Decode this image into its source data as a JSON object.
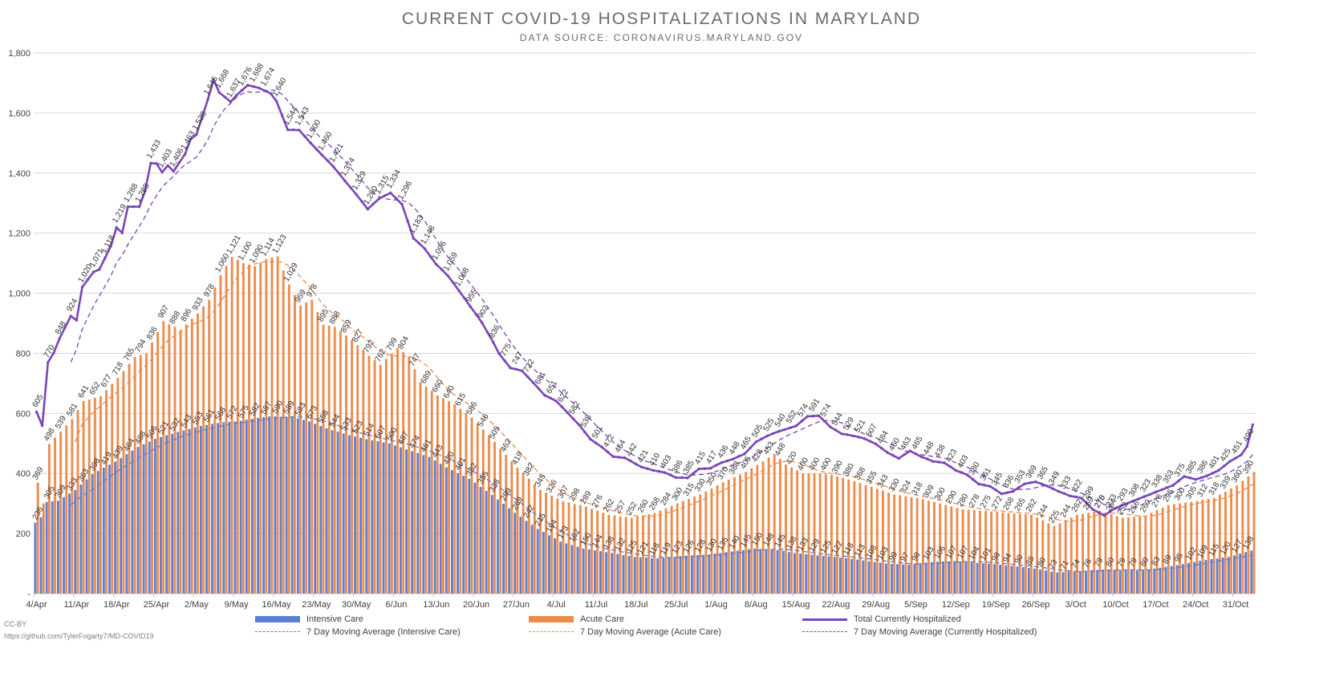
{
  "title": "CURRENT COVID-19 HOSPITALIZATIONS IN MARYLAND",
  "subtitle": "DATA SOURCE: CORONAVIRUS.MARYLAND.GOV",
  "footer": {
    "license": "CC-BY",
    "link": "https://github.com/TylerFogarty7/MD-COVID19"
  },
  "colors": {
    "icu": "#5B7FD1",
    "acute": "#ED8B4B",
    "total": "#7A45B8",
    "grid": "#d9d9d9",
    "axis": "#404040"
  },
  "legend": {
    "icu": "Intensive Care",
    "acute": "Acute Care",
    "total": "Total Currently Hospitalized",
    "icu_ma": "7 Day Moving Average (Intensive Care)",
    "acute_ma": "7 Day Moving Average (Acute Care)",
    "total_ma": "7 Day Moving Average (Currently Hospitalized)"
  },
  "chart_data": {
    "type": "bar",
    "stacked": false,
    "title": "CURRENT COVID-19 HOSPITALIZATIONS IN MARYLAND",
    "subtitle": "DATA SOURCE: CORONAVIRUS.MARYLAND.GOV",
    "xlabel": "",
    "ylabel": "",
    "ylim": [
      0,
      1800
    ],
    "yticks": [
      "-",
      "200",
      "400",
      "600",
      "800",
      "1,000",
      "1,200",
      "1,400",
      "1,600",
      "1,800"
    ],
    "grid": true,
    "legend_position": "bottom",
    "x_tick_labels": [
      "4/Apr",
      "11/Apr",
      "18/Apr",
      "25/Apr",
      "2/May",
      "9/May",
      "16/May",
      "23/May",
      "30/May",
      "6/Jun",
      "13/Jun",
      "20/Jun",
      "27/Jun",
      "4/Jul",
      "11/Jul",
      "18/Jul",
      "25/Jul",
      "1/Aug",
      "8/Aug",
      "15/Aug",
      "22/Aug",
      "29/Aug",
      "5/Sep",
      "12/Sep",
      "19/Sep",
      "26/Sep",
      "3/Oct",
      "10/Oct",
      "17/Oct",
      "24/Oct",
      "31/Oct"
    ],
    "x_start": "4/Apr",
    "day_count": 214,
    "series": [
      {
        "name": "Intensive Care",
        "kind": "bar",
        "knots": [
          [
            0,
            236
          ],
          [
            1,
            254
          ],
          [
            2,
            305
          ],
          [
            4,
            309
          ],
          [
            7,
            345
          ],
          [
            10,
            398
          ],
          [
            14,
            439
          ],
          [
            18,
            488
          ],
          [
            21,
            515
          ],
          [
            25,
            538
          ],
          [
            29,
            558
          ],
          [
            32,
            568
          ],
          [
            36,
            575
          ],
          [
            38,
            582
          ],
          [
            41,
            590
          ],
          [
            45,
            588
          ],
          [
            48,
            573
          ],
          [
            51,
            550
          ],
          [
            55,
            527
          ],
          [
            59,
            510
          ],
          [
            62,
            500
          ],
          [
            65,
            480
          ],
          [
            69,
            455
          ],
          [
            72,
            420
          ],
          [
            76,
            382
          ],
          [
            80,
            328
          ],
          [
            84,
            269
          ],
          [
            88,
            215
          ],
          [
            92,
            173
          ],
          [
            96,
            150
          ],
          [
            100,
            138
          ],
          [
            105,
            122
          ],
          [
            109,
            117
          ],
          [
            113,
            125
          ],
          [
            118,
            130
          ],
          [
            122,
            140
          ],
          [
            126,
            150
          ],
          [
            130,
            145
          ],
          [
            133,
            135
          ],
          [
            137,
            127
          ],
          [
            141,
            120
          ],
          [
            145,
            110
          ],
          [
            149,
            100
          ],
          [
            153,
            96
          ],
          [
            157,
            105
          ],
          [
            161,
            108
          ],
          [
            165,
            102
          ],
          [
            169,
            96
          ],
          [
            173,
            88
          ],
          [
            176,
            80
          ],
          [
            179,
            70
          ],
          [
            183,
            75
          ],
          [
            187,
            80
          ],
          [
            191,
            78
          ],
          [
            195,
            80
          ],
          [
            200,
            95
          ],
          [
            205,
            112
          ],
          [
            209,
            122
          ],
          [
            213,
            143
          ]
        ]
      },
      {
        "name": "Acute Care",
        "kind": "bar",
        "knots": [
          [
            0,
            369
          ],
          [
            1,
            300
          ],
          [
            2,
            498
          ],
          [
            4,
            539
          ],
          [
            6,
            581
          ],
          [
            8,
            641
          ],
          [
            11,
            657
          ],
          [
            14,
            718
          ],
          [
            17,
            788
          ],
          [
            19,
            800
          ],
          [
            22,
            907
          ],
          [
            25,
            878
          ],
          [
            28,
            933
          ],
          [
            30,
            978
          ],
          [
            32,
            1060
          ],
          [
            34,
            1121
          ],
          [
            36,
            1100
          ],
          [
            38,
            1090
          ],
          [
            40,
            1114
          ],
          [
            42,
            1123
          ],
          [
            44,
            1029
          ],
          [
            46,
            959
          ],
          [
            48,
            978
          ],
          [
            50,
            895
          ],
          [
            52,
            888
          ],
          [
            55,
            845
          ],
          [
            58,
            792
          ],
          [
            60,
            762
          ],
          [
            63,
            818
          ],
          [
            65,
            789
          ],
          [
            67,
            704
          ],
          [
            70,
            660
          ],
          [
            73,
            630
          ],
          [
            76,
            586
          ],
          [
            80,
            505
          ],
          [
            84,
            419
          ],
          [
            88,
            345
          ],
          [
            92,
            307
          ],
          [
            96,
            289
          ],
          [
            100,
            262
          ],
          [
            104,
            252
          ],
          [
            108,
            268
          ],
          [
            112,
            300
          ],
          [
            116,
            330
          ],
          [
            120,
            370
          ],
          [
            124,
            405
          ],
          [
            127,
            440
          ],
          [
            129,
            465
          ],
          [
            131,
            430
          ],
          [
            134,
            400
          ],
          [
            138,
            400
          ],
          [
            142,
            380
          ],
          [
            146,
            355
          ],
          [
            150,
            330
          ],
          [
            154,
            318
          ],
          [
            158,
            300
          ],
          [
            162,
            280
          ],
          [
            166,
            275
          ],
          [
            170,
            268
          ],
          [
            174,
            262
          ],
          [
            178,
            225
          ],
          [
            182,
            262
          ],
          [
            186,
            275
          ],
          [
            190,
            252
          ],
          [
            194,
            260
          ],
          [
            198,
            295
          ],
          [
            202,
            305
          ],
          [
            206,
            318
          ],
          [
            210,
            360
          ],
          [
            213,
            405
          ]
        ]
      },
      {
        "name": "Total Currently Hospitalized",
        "kind": "line",
        "knots": [
          [
            0,
            605
          ],
          [
            1,
            559
          ],
          [
            2,
            770
          ],
          [
            3,
            801
          ],
          [
            4,
            848
          ],
          [
            6,
            924
          ],
          [
            7,
            910
          ],
          [
            8,
            1020
          ],
          [
            10,
            1071
          ],
          [
            11,
            1079
          ],
          [
            13,
            1156
          ],
          [
            14,
            1219
          ],
          [
            15,
            1201
          ],
          [
            16,
            1288
          ],
          [
            18,
            1288
          ],
          [
            19,
            1340
          ],
          [
            20,
            1433
          ],
          [
            21,
            1432
          ],
          [
            22,
            1403
          ],
          [
            23,
            1425
          ],
          [
            24,
            1406
          ],
          [
            26,
            1463
          ],
          [
            27,
            1513
          ],
          [
            28,
            1528
          ],
          [
            30,
            1645
          ],
          [
            31,
            1711
          ],
          [
            32,
            1668
          ],
          [
            34,
            1637
          ],
          [
            35,
            1659
          ],
          [
            37,
            1693
          ],
          [
            39,
            1683
          ],
          [
            41,
            1665
          ],
          [
            42,
            1640
          ],
          [
            44,
            1544
          ],
          [
            46,
            1543
          ],
          [
            48,
            1500
          ],
          [
            50,
            1460
          ],
          [
            52,
            1421
          ],
          [
            54,
            1374
          ],
          [
            56,
            1329
          ],
          [
            58,
            1280
          ],
          [
            60,
            1315
          ],
          [
            62,
            1334
          ],
          [
            64,
            1296
          ],
          [
            66,
            1183
          ],
          [
            68,
            1148
          ],
          [
            70,
            1096
          ],
          [
            72,
            1059
          ],
          [
            74,
            1008
          ],
          [
            76,
            955
          ],
          [
            78,
            902
          ],
          [
            80,
            836
          ],
          [
            81,
            799
          ],
          [
            83,
            751
          ],
          [
            85,
            742
          ],
          [
            87,
            702
          ],
          [
            89,
            660
          ],
          [
            91,
            641
          ],
          [
            93,
            602
          ],
          [
            95,
            562
          ],
          [
            97,
            514
          ],
          [
            99,
            488
          ],
          [
            101,
            456
          ],
          [
            103,
            452
          ],
          [
            106,
            421
          ],
          [
            108,
            410
          ],
          [
            110,
            403
          ],
          [
            112,
            386
          ],
          [
            114,
            385
          ],
          [
            116,
            415
          ],
          [
            118,
            417
          ],
          [
            120,
            436
          ],
          [
            122,
            448
          ],
          [
            124,
            465
          ],
          [
            126,
            505
          ],
          [
            128,
            525
          ],
          [
            130,
            540
          ],
          [
            133,
            558
          ],
          [
            135,
            590
          ],
          [
            137,
            592
          ],
          [
            139,
            555
          ],
          [
            141,
            532
          ],
          [
            143,
            525
          ],
          [
            145,
            516
          ],
          [
            147,
            498
          ],
          [
            149,
            470
          ],
          [
            151,
            450
          ],
          [
            153,
            475
          ],
          [
            155,
            455
          ],
          [
            157,
            440
          ],
          [
            159,
            435
          ],
          [
            161,
            410
          ],
          [
            163,
            395
          ],
          [
            165,
            365
          ],
          [
            167,
            357
          ],
          [
            169,
            332
          ],
          [
            171,
            340
          ],
          [
            173,
            365
          ],
          [
            175,
            372
          ],
          [
            177,
            358
          ],
          [
            179,
            340
          ],
          [
            181,
            325
          ],
          [
            183,
            318
          ],
          [
            185,
            280
          ],
          [
            187,
            260
          ],
          [
            189,
            285
          ],
          [
            191,
            300
          ],
          [
            193,
            315
          ],
          [
            195,
            330
          ],
          [
            197,
            345
          ],
          [
            199,
            360
          ],
          [
            201,
            390
          ],
          [
            203,
            380
          ],
          [
            205,
            392
          ],
          [
            207,
            410
          ],
          [
            209,
            440
          ],
          [
            211,
            462
          ],
          [
            212,
            490
          ],
          [
            213,
            562
          ]
        ]
      },
      {
        "name": "7 Day Moving Average (Intensive Care)",
        "kind": "moving_average",
        "of": "Intensive Care",
        "window": 7
      },
      {
        "name": "7 Day Moving Average (Acute Care)",
        "kind": "moving_average",
        "of": "Acute Care",
        "window": 7
      },
      {
        "name": "7 Day Moving Average (Currently Hospitalized)",
        "kind": "moving_average",
        "of": "Total Currently Hospitalized",
        "window": 7
      }
    ]
  }
}
